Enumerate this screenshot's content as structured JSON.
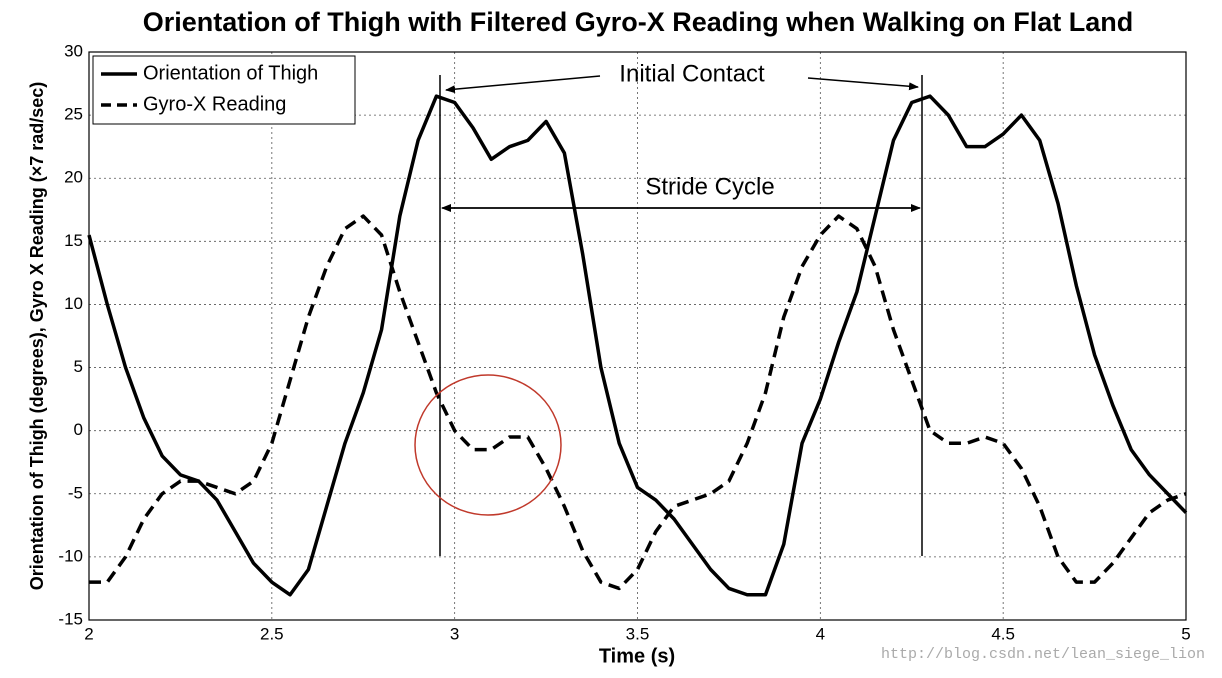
{
  "chart_data": {
    "type": "line",
    "title": "Orientation of Thigh with Filtered Gyro-X Reading when Walking on Flat Land",
    "xlabel": "Time (s)",
    "ylabel": "Orientation of Thigh (degrees), Gyro X Reading (×7 rad/sec)",
    "x": [
      2.0,
      2.05,
      2.1,
      2.15,
      2.2,
      2.25,
      2.3,
      2.35,
      2.4,
      2.45,
      2.5,
      2.55,
      2.6,
      2.65,
      2.7,
      2.75,
      2.8,
      2.85,
      2.9,
      2.95,
      3.0,
      3.05,
      3.1,
      3.15,
      3.2,
      3.25,
      3.3,
      3.35,
      3.4,
      3.45,
      3.5,
      3.55,
      3.6,
      3.65,
      3.7,
      3.75,
      3.8,
      3.85,
      3.9,
      3.95,
      4.0,
      4.05,
      4.1,
      4.15,
      4.2,
      4.25,
      4.3,
      4.35,
      4.4,
      4.45,
      4.5,
      4.55,
      4.6,
      4.65,
      4.7,
      4.75,
      4.8,
      4.85,
      4.9,
      4.95,
      5.0
    ],
    "series": [
      {
        "name": "Orientation of Thigh",
        "color": "#000000",
        "dash": "solid",
        "values": [
          15.5,
          10,
          5,
          1,
          -2,
          -3.5,
          -4,
          -5.5,
          -8,
          -10.5,
          -12,
          -13,
          -11,
          -6,
          -1,
          3,
          8,
          17,
          23,
          26.5,
          26,
          24,
          21.5,
          22.5,
          23,
          24.5,
          22,
          14,
          5,
          -1,
          -4.5,
          -5.5,
          -7,
          -9,
          -11,
          -12.5,
          -13,
          -13,
          -9,
          -1,
          2.5,
          7,
          11,
          17,
          23,
          26,
          26.5,
          25,
          22.5,
          22.5,
          23.5,
          25,
          23,
          18,
          11.5,
          6,
          2,
          -1.5,
          -3.5,
          -5,
          -6.5
        ]
      },
      {
        "name": "Gyro-X Reading",
        "color": "#000000",
        "dash": "dashed",
        "values": [
          -12,
          -12,
          -10,
          -7,
          -5,
          -4,
          -4,
          -4.5,
          -5,
          -4,
          -1,
          4,
          9,
          13,
          16,
          17,
          15.5,
          11,
          7,
          3,
          0,
          -1.5,
          -1.5,
          -0.5,
          -0.5,
          -3,
          -6,
          -9.5,
          -12,
          -12.5,
          -11,
          -8,
          -6,
          -5.5,
          -5,
          -4,
          -1,
          3,
          9,
          13,
          15.5,
          17,
          16,
          13,
          8,
          4,
          0,
          -1,
          -1,
          -0.5,
          -1,
          -3,
          -6,
          -10,
          -12,
          -12,
          -10.5,
          -8.5,
          -6.5,
          -5.5,
          -5
        ]
      }
    ],
    "xlim": [
      2,
      5
    ],
    "xticks": [
      2,
      2.5,
      3,
      3.5,
      4,
      4.5,
      5
    ],
    "ylim": [
      -15,
      30
    ],
    "yticks": [
      -15,
      -10,
      -5,
      0,
      5,
      10,
      15,
      20,
      25,
      30
    ],
    "grid": true,
    "legend": "upper left",
    "annotations": [
      "Initial Contact",
      "Stride Cycle"
    ],
    "watermark": "http://blog.csdn.net/lean_siege_lion"
  }
}
